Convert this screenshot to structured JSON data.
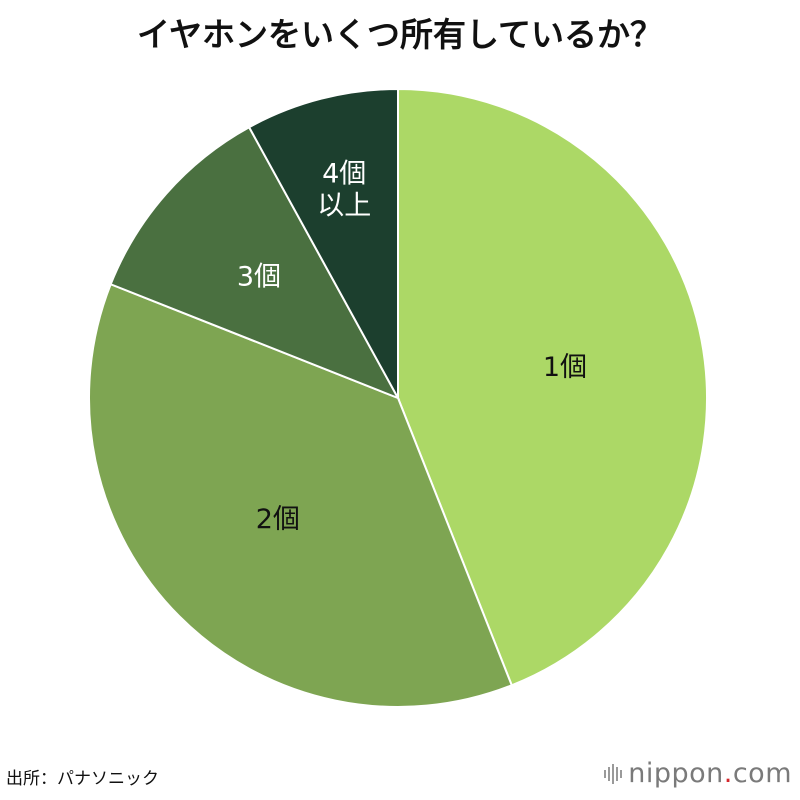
{
  "chart_data": {
    "type": "pie",
    "title": "イヤホンをいくつ所有しているか？",
    "slices": [
      {
        "label": "1個",
        "value": 44,
        "color": "#acd866",
        "text_color": "#111111"
      },
      {
        "label": "2個",
        "value": 37,
        "color": "#7ea552",
        "text_color": "#111111"
      },
      {
        "label": "3個",
        "value": 11,
        "color": "#4a7040",
        "text_color": "#ffffff"
      },
      {
        "label": "4個\n以上",
        "value": 8,
        "color": "#1c3f2e",
        "text_color": "#ffffff"
      }
    ],
    "start": "12 o'clock",
    "direction": "clockwise"
  },
  "source": "出所：パナソニック",
  "logo": {
    "brand": "nippon",
    "dot": ".",
    "tld": "com"
  }
}
